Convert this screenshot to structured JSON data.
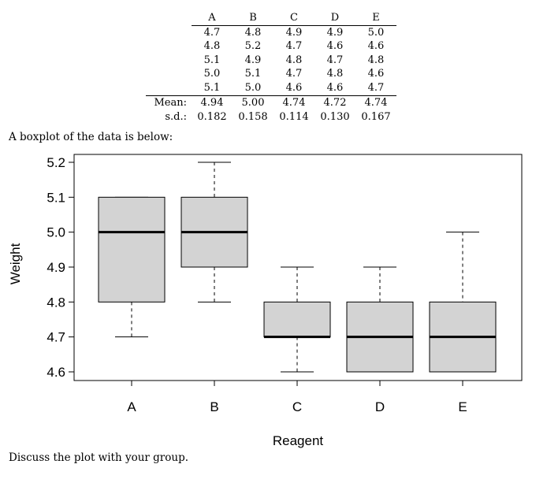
{
  "table": {
    "columns": [
      "A",
      "B",
      "C",
      "D",
      "E"
    ],
    "rows": [
      [
        "4.7",
        "4.8",
        "4.9",
        "4.9",
        "5.0"
      ],
      [
        "4.8",
        "5.2",
        "4.7",
        "4.6",
        "4.6"
      ],
      [
        "5.1",
        "4.9",
        "4.8",
        "4.7",
        "4.8"
      ],
      [
        "5.0",
        "5.1",
        "4.7",
        "4.8",
        "4.6"
      ],
      [
        "5.1",
        "5.0",
        "4.6",
        "4.6",
        "4.7"
      ]
    ],
    "mean_label": "Mean:",
    "means": [
      "4.94",
      "5.00",
      "4.74",
      "4.72",
      "4.74"
    ],
    "sd_label": "s.d.:",
    "sds": [
      "0.182",
      "0.158",
      "0.114",
      "0.130",
      "0.167"
    ]
  },
  "intro_text": "A boxplot of the data is below:",
  "footer_text": "Discuss the plot with your group.",
  "chart_data": {
    "type": "boxplot",
    "xlabel": "Reagent",
    "ylabel": "Weight",
    "categories": [
      "A",
      "B",
      "C",
      "D",
      "E"
    ],
    "boxes": [
      {
        "category": "A",
        "whisker_low": 4.7,
        "q1": 4.8,
        "median": 5.0,
        "q3": 5.1,
        "whisker_high": 5.1
      },
      {
        "category": "B",
        "whisker_low": 4.8,
        "q1": 4.9,
        "median": 5.0,
        "q3": 5.1,
        "whisker_high": 5.2
      },
      {
        "category": "C",
        "whisker_low": 4.6,
        "q1": 4.7,
        "median": 4.7,
        "q3": 4.8,
        "whisker_high": 4.9
      },
      {
        "category": "D",
        "whisker_low": 4.6,
        "q1": 4.6,
        "median": 4.7,
        "q3": 4.8,
        "whisker_high": 4.9
      },
      {
        "category": "E",
        "whisker_low": 4.6,
        "q1": 4.6,
        "median": 4.7,
        "q3": 4.8,
        "whisker_high": 5.0
      }
    ],
    "yticks": [
      "4.6",
      "4.7",
      "4.8",
      "4.9",
      "5.0",
      "5.1",
      "5.2"
    ],
    "ylim": [
      4.575,
      5.225
    ],
    "box_fill": "#d3d3d3",
    "grid": false
  }
}
